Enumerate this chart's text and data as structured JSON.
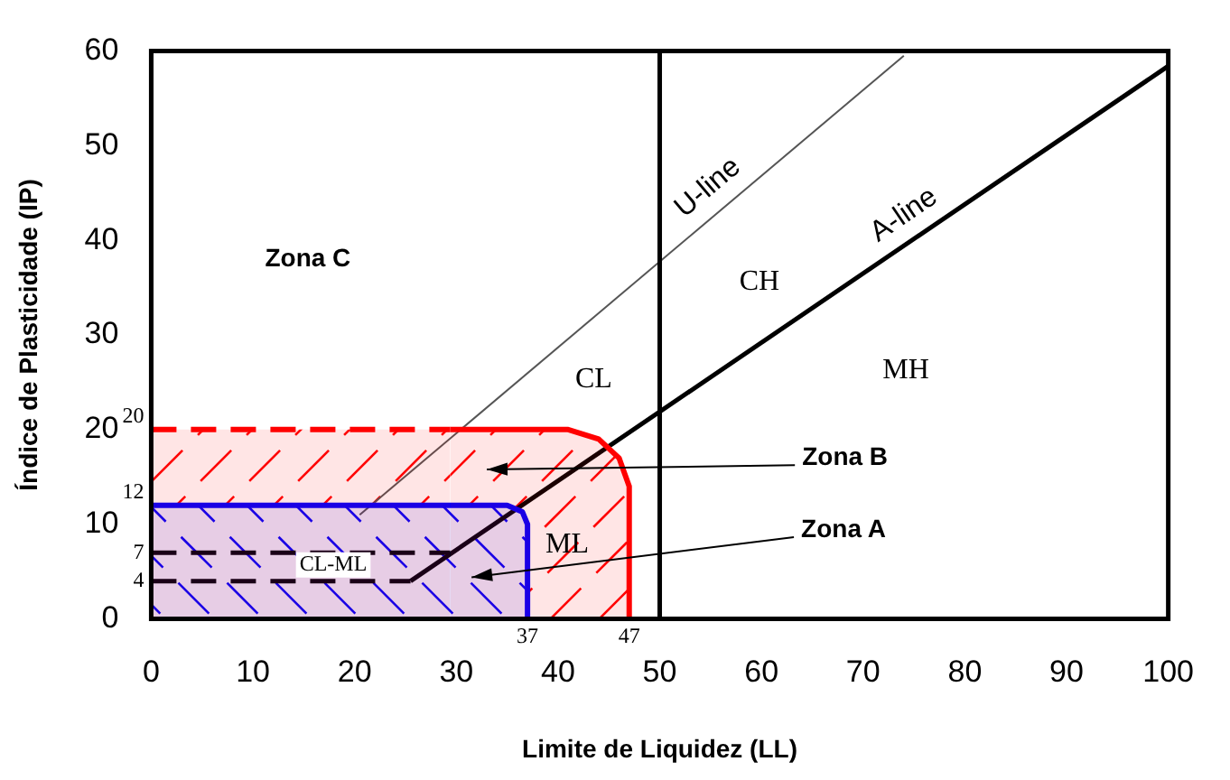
{
  "chart_data": {
    "type": "line",
    "xlabel": "Limite de Liquidez (LL)",
    "ylabel": "Índice de Plasticidade (IP)",
    "xlim": [
      0,
      100
    ],
    "xticks": [
      0,
      10,
      20,
      30,
      40,
      50,
      60,
      70,
      80,
      90,
      100
    ],
    "ylim": [
      0,
      60
    ],
    "yticks": [
      0,
      10,
      20,
      30,
      40,
      50,
      60
    ],
    "series": [
      {
        "type": "area",
        "color": "#ff0000",
        "line_style": "dashed",
        "x": [
          0,
          29.4
        ],
        "values": [
          20,
          20
        ]
      },
      {
        "type": "area",
        "color": "#ff0000",
        "x": [
          29.4,
          41,
          44,
          46,
          47,
          47
        ],
        "values": [
          20,
          20,
          19,
          17,
          14,
          0
        ]
      },
      {
        "type": "area",
        "color": "#0000ff",
        "x": [
          0,
          35,
          36.5,
          37,
          37
        ],
        "values": [
          12,
          12,
          11.3,
          10,
          0
        ]
      },
      {
        "type": "line",
        "color": "#000000",
        "line_style": "dashed",
        "x": [
          0,
          29.4
        ],
        "values": [
          7,
          7
        ]
      },
      {
        "type": "line",
        "color": "#000000",
        "line_style": "dashed",
        "x": [
          0,
          25.5
        ],
        "values": [
          4,
          4
        ]
      },
      {
        "type": "line",
        "name": "U-line",
        "color": "#555555",
        "x": [
          20.5,
          74
        ],
        "values": [
          11,
          59.5
        ]
      },
      {
        "type": "line",
        "name": "A-line",
        "color": "#000000",
        "x": [
          25.5,
          100
        ],
        "values": [
          4,
          58.4
        ]
      }
    ],
    "ref_lines": [
      {
        "axis": "x",
        "value": 50,
        "color": "#000000"
      }
    ],
    "annotations": [
      "Zona C",
      "Zona B",
      "Zona A",
      "CL",
      "CH",
      "MH",
      "ML",
      "CL-ML",
      {
        "text": "20",
        "x": 0,
        "y": 20
      },
      {
        "text": "12",
        "x": 0,
        "y": 12
      },
      {
        "text": "7",
        "x": 0,
        "y": 7
      },
      {
        "text": "4",
        "x": 0,
        "y": 4
      },
      {
        "text": "37",
        "x": 37,
        "y": 0
      },
      {
        "text": "47",
        "x": 47,
        "y": 0
      }
    ]
  }
}
